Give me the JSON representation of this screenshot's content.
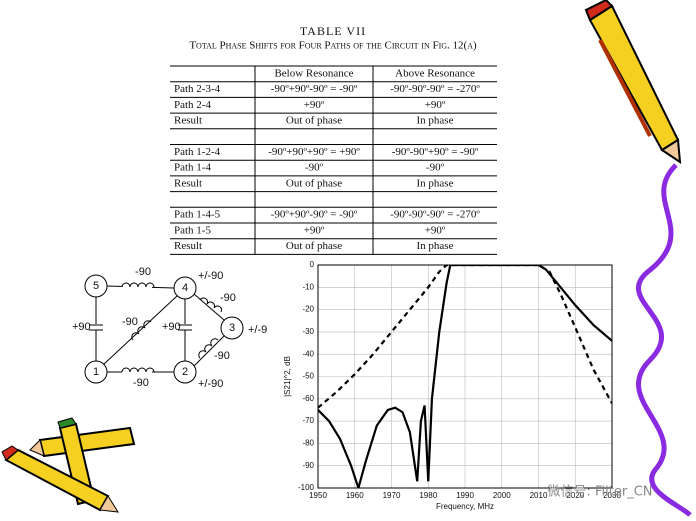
{
  "table": {
    "title": "TABLE VII",
    "caption": "Total Phase Shifts for Four Paths of the Circuit in Fig. 12(a)",
    "header": [
      "Below Resonance",
      "Above Resonance"
    ],
    "groups": [
      [
        [
          "Path 2-3-4",
          "-90º+90º-90º = -90º",
          "-90º-90º-90º = -270º"
        ],
        [
          "Path 2-4",
          "+90º",
          "+90º"
        ],
        [
          "Result",
          "Out of phase",
          "In phase"
        ]
      ],
      [
        [
          "Path 1-2-4",
          "-90º+90º+90º = +90º",
          "-90º-90º+90º = -90º"
        ],
        [
          "Path 1-4",
          "-90º",
          "-90º"
        ],
        [
          "Result",
          "Out of phase",
          "In  phase"
        ]
      ],
      [
        [
          "Path 1-4-5",
          "-90º+90º-90º = -90º",
          "-90º-90º-90º = -270º"
        ],
        [
          "Path 1-5",
          "+90º",
          "+90º"
        ],
        [
          "Result",
          "Out of phase",
          "In phase"
        ]
      ]
    ]
  },
  "circuit": {
    "nodes": [
      "1",
      "2",
      "3",
      "4",
      "5"
    ],
    "labels": [
      "-90",
      "+/-90",
      "-90",
      "-90",
      "+90",
      "+90",
      "+/-9",
      "-90",
      "-90",
      "+/-90"
    ]
  },
  "chart_data": {
    "type": "line",
    "xlabel": "Frequency, MHz",
    "ylabel": "|S21|^2, dB",
    "xlim": [
      1950,
      2030
    ],
    "ylim": [
      -100,
      0
    ],
    "xticks": [
      1950,
      1960,
      1970,
      1980,
      1990,
      2000,
      2010,
      2020,
      2030
    ],
    "yticks": [
      0,
      -10,
      -20,
      -30,
      -40,
      -50,
      -60,
      -70,
      -80,
      -90,
      -100
    ],
    "grid": true,
    "series": [
      {
        "color": "#000000",
        "dash": false,
        "x": [
          1950,
          1953,
          1956,
          1959,
          1961,
          1963,
          1966,
          1969,
          1971,
          1973,
          1975,
          1977,
          1978,
          1979,
          1980,
          1981,
          1983,
          1985,
          1986,
          2010,
          2012,
          2015,
          2020,
          2025,
          2030
        ],
        "values": [
          -65,
          -70,
          -78,
          -90,
          -100,
          -88,
          -72,
          -65,
          -64,
          -66,
          -75,
          -97,
          -70,
          -63,
          -97,
          -60,
          -30,
          -8,
          0,
          0,
          -2,
          -8,
          -18,
          -27,
          -34
        ]
      },
      {
        "color": "#000000",
        "dash": true,
        "x": [
          1950,
          1955,
          1960,
          1965,
          1970,
          1975,
          1980,
          1983,
          1985,
          2010,
          2013,
          2016,
          2020,
          2025,
          2030
        ],
        "values": [
          -64,
          -57,
          -49,
          -40,
          -30,
          -20,
          -10,
          -3,
          0,
          0,
          -3,
          -13,
          -28,
          -47,
          -62
        ]
      }
    ]
  },
  "watermark": "微信号: Filter_CN"
}
